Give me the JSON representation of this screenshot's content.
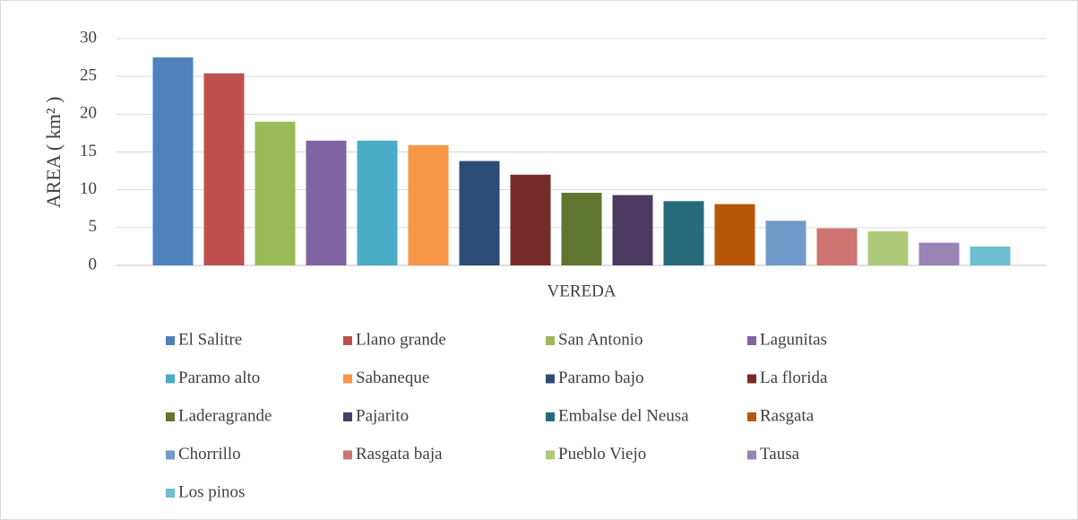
{
  "chart_data": {
    "type": "bar",
    "xlabel": "VEREDA",
    "ylabel": "AREA ( km² )",
    "categories": [
      "VEREDA"
    ],
    "series": [
      {
        "name": "El Salitre",
        "color": "#4f81bd",
        "values": [
          27.5
        ]
      },
      {
        "name": "Llano grande",
        "color": "#c0504d",
        "values": [
          25.4
        ]
      },
      {
        "name": "San Antonio",
        "color": "#9bbb59",
        "values": [
          19.0
        ]
      },
      {
        "name": "Lagunitas",
        "color": "#8064a2",
        "values": [
          16.5
        ]
      },
      {
        "name": "Paramo alto",
        "color": "#4bacc6",
        "values": [
          16.5
        ]
      },
      {
        "name": "Sabaneque",
        "color": "#f79646",
        "values": [
          15.9
        ]
      },
      {
        "name": "Paramo bajo",
        "color": "#2c4d75",
        "values": [
          13.8
        ]
      },
      {
        "name": "La florida",
        "color": "#772c2a",
        "values": [
          12.0
        ]
      },
      {
        "name": "Laderagrande",
        "color": "#5f7530",
        "values": [
          9.6
        ]
      },
      {
        "name": "Pajarito",
        "color": "#4d3b62",
        "values": [
          9.3
        ]
      },
      {
        "name": "Embalse del Neusa",
        "color": "#276a7c",
        "values": [
          8.5
        ]
      },
      {
        "name": "Rasgata",
        "color": "#b65708",
        "values": [
          8.1
        ]
      },
      {
        "name": "Chorrillo",
        "color": "#729aca",
        "values": [
          5.9
        ]
      },
      {
        "name": "Rasgata baja",
        "color": "#cd7371",
        "values": [
          4.9
        ]
      },
      {
        "name": "Pueblo Viejo",
        "color": "#afc97a",
        "values": [
          4.5
        ]
      },
      {
        "name": "Tausa",
        "color": "#9983b5",
        "values": [
          3.0
        ]
      },
      {
        "name": "Los pinos",
        "color": "#6fbdd1",
        "values": [
          2.5
        ]
      }
    ],
    "ylim": [
      0,
      30
    ],
    "yticks": [
      0,
      5,
      10,
      15,
      20,
      25,
      30
    ],
    "grid": true,
    "legend": "bottom"
  }
}
